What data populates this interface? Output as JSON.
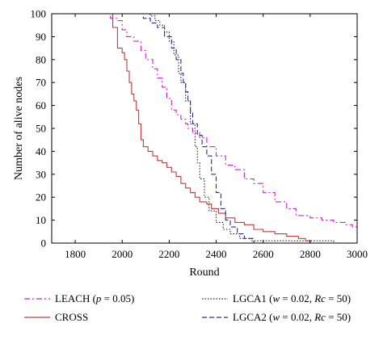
{
  "chart_data": {
    "type": "line",
    "xlabel": "Round",
    "ylabel": "Number of alive nodes",
    "xlim": [
      1700,
      3000
    ],
    "ylim": [
      0,
      100
    ],
    "xticks": [
      1800,
      2000,
      2200,
      2400,
      2600,
      2800,
      3000
    ],
    "yticks": [
      0,
      10,
      20,
      30,
      40,
      50,
      60,
      70,
      80,
      90,
      100
    ],
    "grid": false,
    "legend_position": "bottom",
    "series": [
      {
        "key": "leach",
        "name": "LEACH (p = 0.05)",
        "legend_parts": [
          [
            "LEACH (",
            false
          ],
          [
            "p",
            true
          ],
          [
            " = 0.05)",
            false
          ]
        ],
        "color": "#cc22cc",
        "dash": "7,3,2,3",
        "step": true,
        "points": [
          [
            1700,
            100
          ],
          [
            1910,
            100
          ],
          [
            1950,
            98
          ],
          [
            1980,
            97
          ],
          [
            2000,
            93
          ],
          [
            2020,
            90
          ],
          [
            2050,
            88
          ],
          [
            2080,
            84
          ],
          [
            2100,
            80
          ],
          [
            2130,
            76
          ],
          [
            2150,
            72
          ],
          [
            2170,
            68
          ],
          [
            2190,
            63
          ],
          [
            2210,
            58
          ],
          [
            2230,
            56
          ],
          [
            2250,
            54
          ],
          [
            2270,
            52
          ],
          [
            2280,
            50
          ],
          [
            2300,
            48
          ],
          [
            2330,
            46
          ],
          [
            2360,
            42
          ],
          [
            2400,
            38
          ],
          [
            2440,
            34
          ],
          [
            2480,
            32
          ],
          [
            2520,
            28
          ],
          [
            2560,
            26
          ],
          [
            2600,
            22
          ],
          [
            2650,
            18
          ],
          [
            2700,
            15
          ],
          [
            2740,
            12
          ],
          [
            2800,
            11
          ],
          [
            2850,
            10
          ],
          [
            2900,
            9
          ],
          [
            2950,
            8
          ],
          [
            2980,
            7
          ],
          [
            3000,
            6
          ]
        ]
      },
      {
        "key": "lgca1",
        "name": "LGCA1 (w = 0.02, Rc = 50)",
        "legend_parts": [
          [
            "LGCA1 (",
            false
          ],
          [
            "w",
            true
          ],
          [
            " = 0.02, ",
            false
          ],
          [
            "Rc",
            true
          ],
          [
            " = 50)",
            false
          ]
        ],
        "color": "#222222",
        "dash": "1.5,2",
        "step": true,
        "points": [
          [
            1700,
            100
          ],
          [
            2100,
            100
          ],
          [
            2120,
            99
          ],
          [
            2140,
            97
          ],
          [
            2160,
            95
          ],
          [
            2180,
            92
          ],
          [
            2200,
            88
          ],
          [
            2220,
            82
          ],
          [
            2240,
            74
          ],
          [
            2250,
            70
          ],
          [
            2270,
            62
          ],
          [
            2290,
            52
          ],
          [
            2310,
            42
          ],
          [
            2320,
            35
          ],
          [
            2330,
            28
          ],
          [
            2350,
            20
          ],
          [
            2370,
            14
          ],
          [
            2400,
            9
          ],
          [
            2430,
            6
          ],
          [
            2460,
            4
          ],
          [
            2500,
            2
          ],
          [
            2550,
            1
          ],
          [
            2700,
            1
          ],
          [
            2900,
            0
          ]
        ]
      },
      {
        "key": "cross",
        "name": "CROSS",
        "legend_parts": [
          [
            "CROSS",
            false
          ]
        ],
        "color": "#c03a3a",
        "dash": "",
        "step": true,
        "points": [
          [
            1700,
            100
          ],
          [
            1940,
            100
          ],
          [
            1960,
            94
          ],
          [
            1980,
            85
          ],
          [
            2000,
            83
          ],
          [
            2010,
            80
          ],
          [
            2020,
            75
          ],
          [
            2030,
            70
          ],
          [
            2040,
            65
          ],
          [
            2050,
            62
          ],
          [
            2060,
            58
          ],
          [
            2070,
            52
          ],
          [
            2080,
            45
          ],
          [
            2090,
            42
          ],
          [
            2110,
            40
          ],
          [
            2130,
            38
          ],
          [
            2150,
            36
          ],
          [
            2170,
            35
          ],
          [
            2190,
            33
          ],
          [
            2210,
            31
          ],
          [
            2230,
            29
          ],
          [
            2250,
            26
          ],
          [
            2270,
            24
          ],
          [
            2290,
            22
          ],
          [
            2310,
            20
          ],
          [
            2330,
            18
          ],
          [
            2360,
            17
          ],
          [
            2380,
            15
          ],
          [
            2410,
            13
          ],
          [
            2440,
            11
          ],
          [
            2480,
            9
          ],
          [
            2520,
            8
          ],
          [
            2560,
            6
          ],
          [
            2600,
            5
          ],
          [
            2650,
            4
          ],
          [
            2700,
            3
          ],
          [
            2750,
            2
          ],
          [
            2780,
            1
          ],
          [
            2800,
            0
          ]
        ]
      },
      {
        "key": "lgca2",
        "name": "LGCA2 (w = 0.02, Rc = 50)",
        "legend_parts": [
          [
            "LGCA2 (",
            false
          ],
          [
            "w",
            true
          ],
          [
            " = 0.02, ",
            false
          ],
          [
            "Rc",
            true
          ],
          [
            " = 50)",
            false
          ]
        ],
        "color": "#2a2a9a",
        "dash": "6,3",
        "step": true,
        "points": [
          [
            1700,
            100
          ],
          [
            2060,
            100
          ],
          [
            2090,
            98
          ],
          [
            2120,
            96
          ],
          [
            2150,
            94
          ],
          [
            2180,
            90
          ],
          [
            2210,
            85
          ],
          [
            2230,
            80
          ],
          [
            2250,
            74
          ],
          [
            2260,
            70
          ],
          [
            2270,
            66
          ],
          [
            2280,
            62
          ],
          [
            2290,
            57
          ],
          [
            2300,
            52
          ],
          [
            2320,
            47
          ],
          [
            2340,
            42
          ],
          [
            2360,
            38
          ],
          [
            2380,
            30
          ],
          [
            2400,
            22
          ],
          [
            2420,
            15
          ],
          [
            2440,
            10
          ],
          [
            2460,
            7
          ],
          [
            2490,
            4
          ],
          [
            2520,
            2
          ],
          [
            2560,
            0
          ]
        ]
      }
    ]
  }
}
